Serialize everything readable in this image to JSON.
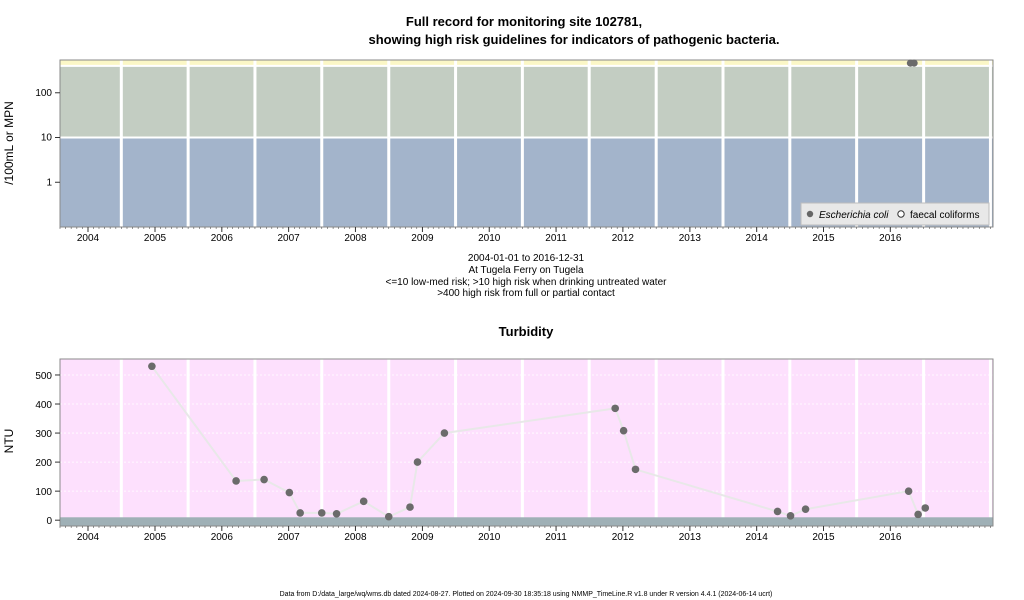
{
  "colors": {
    "risk_low": "#a3b4cb",
    "risk_mid": "#c3cdc2",
    "risk_high": "#fbf7c6",
    "turb_bg": "#fde0fd",
    "turb_floor": "#9fb0b6",
    "point": "#6b6b6b",
    "grid": "#ffffff",
    "line": "#e8e8e8"
  },
  "chart_data": [
    {
      "type": "scatter",
      "title_line1": "Full record for monitoring site 102781,",
      "title_line2": "showing high risk guidelines for indicators of pathogenic bacteria.",
      "ylabel": "/100mL or MPN",
      "y_scale": "log",
      "y_ticks": [
        "1",
        "10",
        "100"
      ],
      "x_ticks": [
        "2004",
        "2005",
        "2006",
        "2007",
        "2008",
        "2009",
        "2010",
        "2011",
        "2012",
        "2013",
        "2014",
        "2015",
        "2016"
      ],
      "xlim": [
        "2003-08-01",
        "2017-07-15"
      ],
      "ylim": [
        0.1,
        540
      ],
      "bands": [
        {
          "from": 0.1,
          "to": 10,
          "color": "risk_low"
        },
        {
          "from": 10,
          "to": 400,
          "color": "risk_mid"
        },
        {
          "from": 400,
          "to": 540,
          "color": "risk_high"
        }
      ],
      "captions": [
        "2004-01-01 to 2016-12-31",
        "At Tugela Ferry on Tugela",
        "<=10 low-med risk; >10 high risk when drinking untreated water",
        ">400 high risk from full or partial contact"
      ],
      "legend": {
        "position": "bottom-right",
        "items": [
          {
            "label": "Escherichia coli",
            "marker": "filled",
            "italic": true
          },
          {
            "label": "faecal coliforms",
            "marker": "open",
            "italic": false
          }
        ]
      },
      "series": [
        {
          "name": "Escherichia coli",
          "points": [
            {
              "x": "2016-04-20",
              "y": 460
            },
            {
              "x": "2016-05-10",
              "y": 460
            }
          ]
        }
      ]
    },
    {
      "type": "line",
      "title": "Turbidity",
      "ylabel": "NTU",
      "y_ticks": [
        0,
        100,
        200,
        300,
        400,
        500
      ],
      "x_ticks": [
        "2004",
        "2005",
        "2006",
        "2007",
        "2008",
        "2009",
        "2010",
        "2011",
        "2012",
        "2013",
        "2014",
        "2015",
        "2016"
      ],
      "xlim": [
        "2003-08-01",
        "2017-07-15"
      ],
      "ylim": [
        -20,
        555
      ],
      "floor_band": {
        "from": -20,
        "to": 10
      },
      "series": [
        {
          "name": "Turbidity",
          "points": [
            {
              "x": "2004-12-15",
              "y": 530
            },
            {
              "x": "2006-03-20",
              "y": 135
            },
            {
              "x": "2006-08-20",
              "y": 140
            },
            {
              "x": "2007-01-05",
              "y": 95
            },
            {
              "x": "2007-03-05",
              "y": 25
            },
            {
              "x": "2007-07-01",
              "y": 25
            },
            {
              "x": "2007-09-20",
              "y": 22
            },
            {
              "x": "2008-02-15",
              "y": 65
            },
            {
              "x": "2008-07-01",
              "y": 12
            },
            {
              "x": "2008-10-25",
              "y": 45
            },
            {
              "x": "2008-12-05",
              "y": 200
            },
            {
              "x": "2009-05-01",
              "y": 300
            },
            {
              "x": "2011-11-20",
              "y": 385
            },
            {
              "x": "2012-01-05",
              "y": 308
            },
            {
              "x": "2012-03-10",
              "y": 175
            },
            {
              "x": "2014-04-25",
              "y": 30
            },
            {
              "x": "2014-07-05",
              "y": 15
            },
            {
              "x": "2014-09-25",
              "y": 38
            },
            {
              "x": "2016-04-10",
              "y": 100
            },
            {
              "x": "2016-06-01",
              "y": 20
            },
            {
              "x": "2016-07-10",
              "y": 42
            }
          ]
        }
      ]
    }
  ],
  "footer": "Data from D:/data_large/wq/wms.db dated 2024-08-27. Plotted on 2024-09-30 18:35:18 using NMMP_TimeLine.R v1.8 under R version 4.4.1 (2024-06-14 ucrt)"
}
